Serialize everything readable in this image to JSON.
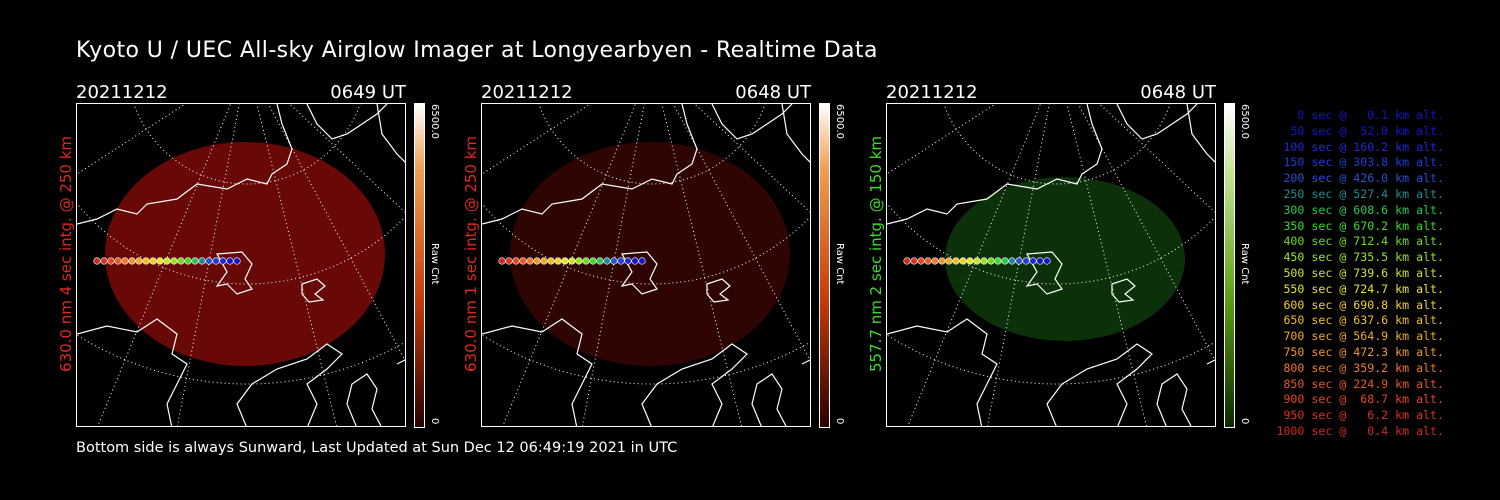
{
  "title": "Kyoto U / UEC All-sky Airglow Imager at Longyearbyen - Realtime Data",
  "footer": "Bottom side is always Sunward, Last Updated at Sun Dec 12 06:49:19 2021 in UTC",
  "panels": [
    {
      "date": "20211212",
      "time": "0649 UT",
      "ylabel": "630.0 nm 4 sec intg. @ 250 km",
      "label_color": "#e0281e",
      "cbar_max": "6500.0",
      "cbar_min": "0",
      "cbar_label": "Raw Cnt",
      "glow": "#7a0a08",
      "glow_opacity": 0.85
    },
    {
      "date": "20211212",
      "time": "0648 UT",
      "ylabel": "630.0 nm 1 sec intg. @ 250 km",
      "label_color": "#e0281e",
      "cbar_max": "6500.0",
      "cbar_min": "0",
      "cbar_label": "Raw Cnt",
      "glow": "#3a0604",
      "glow_opacity": 0.8
    },
    {
      "date": "20211212",
      "time": "0648 UT",
      "ylabel": "557.7 nm 2 sec intg. @ 150 km",
      "label_color": "#3cdc28",
      "cbar_max": "6500.0",
      "cbar_min": "0",
      "cbar_label": "Raw Cnt",
      "glow": "#0e3a0c",
      "glow_opacity": 0.85
    }
  ],
  "legend": [
    {
      "text": "0 sec @   0.1 km alt.",
      "color": "#1414c8"
    },
    {
      "text": "50 sec @  52.0 km alt.",
      "color": "#1414d2"
    },
    {
      "text": "100 sec @ 160.2 km alt.",
      "color": "#1e28dc"
    },
    {
      "text": "150 sec @ 303.8 km alt.",
      "color": "#1e3cdc"
    },
    {
      "text": "200 sec @ 426.0 km alt.",
      "color": "#2850d2"
    },
    {
      "text": "250 sec @ 527.4 km alt.",
      "color": "#1e8c96"
    },
    {
      "text": "300 sec @ 608.6 km alt.",
      "color": "#28c850"
    },
    {
      "text": "350 sec @ 670.2 km alt.",
      "color": "#3cdc28"
    },
    {
      "text": "400 sec @ 712.4 km alt.",
      "color": "#6edc1e"
    },
    {
      "text": "450 sec @ 735.5 km alt.",
      "color": "#96e61e"
    },
    {
      "text": "500 sec @ 739.6 km alt.",
      "color": "#c8e628"
    },
    {
      "text": "550 sec @ 724.7 km alt.",
      "color": "#e6e628"
    },
    {
      "text": "600 sec @ 690.8 km alt.",
      "color": "#f0d228"
    },
    {
      "text": "650 sec @ 637.6 km alt.",
      "color": "#f0be28"
    },
    {
      "text": "700 sec @ 564.9 km alt.",
      "color": "#f0aa28"
    },
    {
      "text": "750 sec @ 472.3 km alt.",
      "color": "#f09628"
    },
    {
      "text": "800 sec @ 359.2 km alt.",
      "color": "#f07828"
    },
    {
      "text": "850 sec @ 224.9 km alt.",
      "color": "#e65a1e"
    },
    {
      "text": "900 sec @  68.7 km alt.",
      "color": "#e6461e"
    },
    {
      "text": "950 sec @   6.2 km alt.",
      "color": "#dc321e"
    },
    {
      "text": "1000 sec @   0.4 km alt.",
      "color": "#d2281e"
    }
  ]
}
